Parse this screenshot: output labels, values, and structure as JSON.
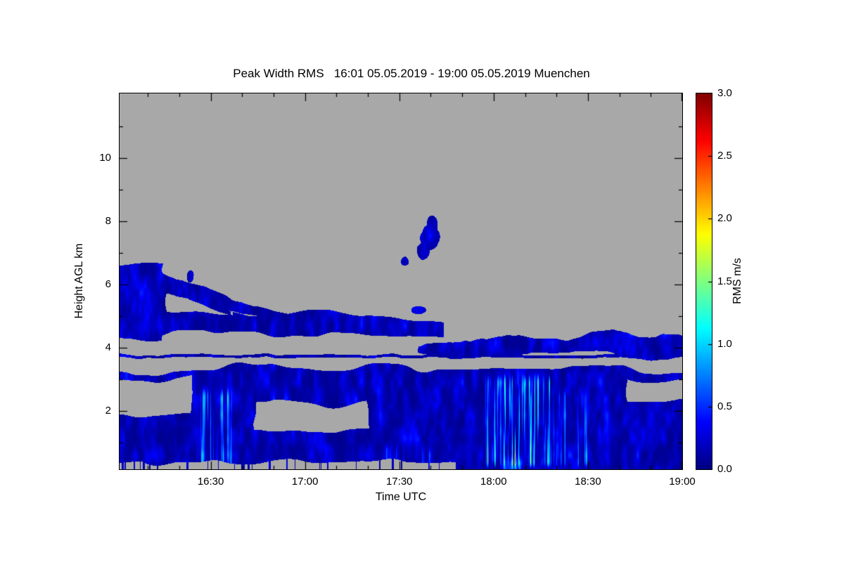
{
  "chart_data": {
    "type": "heatmap",
    "title": "Peak Width RMS   16:01 05.05.2019 - 19:00 05.05.2019 Muenchen",
    "xlabel": "Time UTC",
    "ylabel": "Height AGL km",
    "x_start_label": "16:01",
    "x_end_label": "19:00",
    "x_range_minutes": [
      961,
      1140
    ],
    "x_ticks": [
      {
        "label": "16:30",
        "minutes": 990
      },
      {
        "label": "17:00",
        "minutes": 1020
      },
      {
        "label": "17:30",
        "minutes": 1050
      },
      {
        "label": "18:00",
        "minutes": 1080
      },
      {
        "label": "18:30",
        "minutes": 1110
      },
      {
        "label": "19:00",
        "minutes": 1140
      }
    ],
    "x_minor_step_minutes": 10,
    "y_range_km": [
      0.15,
      12.04
    ],
    "y_major_ticks_km": [
      2,
      4,
      6,
      8,
      10
    ],
    "y_minor_step_km": 1,
    "grid": false,
    "legend": false,
    "background_color": "#FFFFFF",
    "no_data_color": "#A8A8A8",
    "colorbar": {
      "title": "RMS m/s",
      "min": 0.0,
      "max": 3.0,
      "tick_labels": [
        "0.0",
        "0.5",
        "1.0",
        "1.5",
        "2.0",
        "2.5",
        "3.0"
      ],
      "colormap": "jet",
      "gradient_stops": [
        {
          "frac": 0.0,
          "color": "#000080"
        },
        {
          "frac": 0.125,
          "color": "#0000FF"
        },
        {
          "frac": 0.25,
          "color": "#0080FF"
        },
        {
          "frac": 0.375,
          "color": "#00FFFF"
        },
        {
          "frac": 0.5,
          "color": "#80FF80"
        },
        {
          "frac": 0.625,
          "color": "#FFFF00"
        },
        {
          "frac": 0.75,
          "color": "#FF8000"
        },
        {
          "frac": 0.875,
          "color": "#FF0000"
        },
        {
          "frac": 1.0,
          "color": "#800000"
        }
      ]
    },
    "description": "Doppler lidar peak-width RMS time-height plot; gray = no data, dark blue = RMS near 0-0.3 m/s, cyan filaments = turbulent regions near 1 m/s",
    "features": {
      "lower_mass": {
        "t": [
          961,
          1140
        ],
        "top_base": 3.1,
        "top_var": 0.45,
        "typical_rms": 0.15
      },
      "bottom_gray": {
        "t_end": 1068,
        "h": 0.34
      },
      "holes": [
        [
          955,
          983,
          1.9,
          3.05
        ],
        [
          1003,
          1040,
          1.4,
          2.25
        ],
        [
          1122,
          1146,
          2.3,
          3.0
        ]
      ],
      "streaks": [
        [
          985,
          998,
          0.1,
          2.9,
          1.0
        ],
        [
          1076,
          1100,
          0.1,
          3.3,
          1.5
        ],
        [
          1098,
          1112,
          0.1,
          2.9,
          0.7
        ],
        [
          1044,
          1064,
          0.1,
          1.1,
          0.5
        ]
      ],
      "bottom_bright": [
        1082,
        1090,
        0.7
      ],
      "left_block": {
        "t_end": 975,
        "h": [
          4.3,
          6.55
        ]
      },
      "wedge": {
        "t": [
          961,
          1015
        ],
        "center": [
          6.3,
          4.97
        ],
        "halfw": [
          0.42,
          0.12
        ]
      },
      "diag_streak": {
        "t": [
          975,
          1002
        ],
        "h_start": 5.75,
        "slope": -0.03,
        "halfw": 0.08
      },
      "mid_layer": {
        "t": [
          961,
          1065
        ],
        "top": 5.1,
        "bottom": 4.45,
        "bump_t": 1023,
        "bump_amp": 0.25
      },
      "right_band": {
        "t": [
          1056,
          1146
        ],
        "top": 4.3,
        "bottom": 3.78,
        "ramp_t": 1056,
        "bump_t": 1118,
        "bump_amp": 0.22
      },
      "thin_line": {
        "h": 3.73,
        "halfw": 0.045
      },
      "blobs": [
        [
          1059.5,
          7.5,
          3.0,
          0.42
        ],
        [
          1057.5,
          7.05,
          2.0,
          0.28
        ],
        [
          1060.5,
          7.95,
          1.8,
          0.28
        ],
        [
          1051.5,
          6.75,
          1.2,
          0.15
        ],
        [
          1056.0,
          5.22,
          2.2,
          0.13
        ],
        [
          983.5,
          6.25,
          1.1,
          0.2
        ]
      ]
    }
  }
}
